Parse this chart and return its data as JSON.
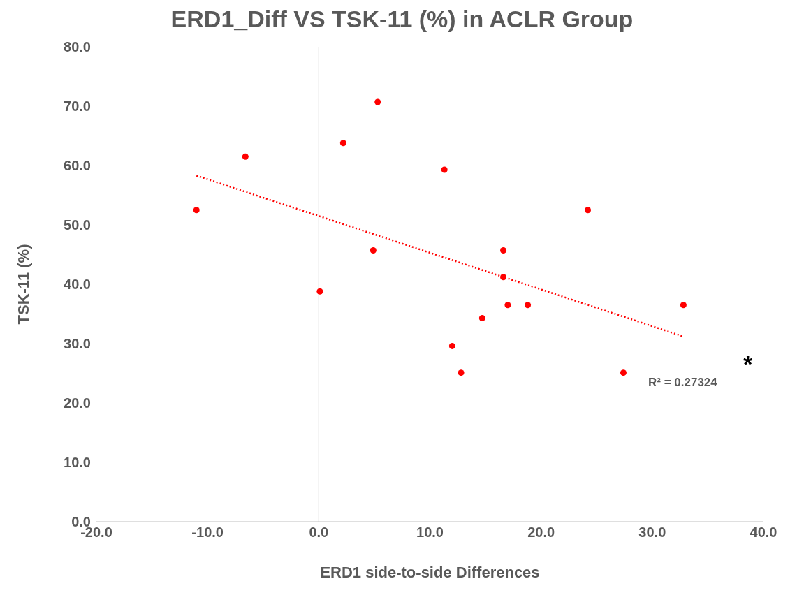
{
  "chart_data": {
    "type": "scatter",
    "title": "ERD1_Diff VS TSK-11 (%) in ACLR Group",
    "xlabel": "ERD1 side-to-side Differences",
    "ylabel": "TSK-11 (%)",
    "x": [
      -11.0,
      -6.6,
      0.1,
      2.2,
      4.9,
      5.3,
      11.3,
      12.0,
      12.8,
      14.7,
      16.6,
      16.6,
      17.0,
      18.8,
      24.2,
      27.4,
      32.8
    ],
    "series": [
      {
        "color": "#ff0000",
        "marker": "circle",
        "values": [
          52.5,
          61.5,
          38.8,
          63.8,
          45.7,
          70.7,
          59.3,
          29.6,
          25.1,
          34.3,
          45.7,
          41.2,
          36.5,
          36.5,
          52.5,
          25.1,
          36.5
        ]
      },
      {
        "type": "line",
        "color": "#ff0000",
        "marker": "none",
        "line_style": "dotted",
        "x": [
          -11.0,
          32.8
        ],
        "values": [
          58.3,
          31.2
        ]
      }
    ],
    "xlim": [
      -20,
      40
    ],
    "xticks": [
      {
        "value": -20,
        "label": "-20.0"
      },
      {
        "value": 0,
        "label": "0.0"
      },
      {
        "value": 10,
        "label": "10.0"
      },
      {
        "value": 20,
        "label": "20.0"
      },
      {
        "value": 30,
        "label": "30.0"
      },
      {
        "value": 40,
        "label": "40.0"
      },
      {
        "value": -10,
        "label": "-10.0"
      }
    ],
    "ylim": [
      0,
      80
    ],
    "yticks": [
      {
        "value": 0,
        "label": "0.0"
      },
      {
        "value": 10,
        "label": "10.0"
      },
      {
        "value": 20,
        "label": "20.0"
      },
      {
        "value": 30,
        "label": "30.0"
      },
      {
        "value": 40,
        "label": "40.0"
      },
      {
        "value": 50,
        "label": "50.0"
      },
      {
        "value": 60,
        "label": "60.0"
      },
      {
        "value": 70,
        "label": "70.0"
      },
      {
        "value": 80,
        "label": "80.0"
      }
    ],
    "ref_lines": [
      {
        "axis": "x",
        "value": 0,
        "color": "#bfbfbf",
        "line_style": "solid"
      }
    ],
    "annotations": [
      "R² = 0.27324",
      "*"
    ],
    "grid": false,
    "legend": false
  }
}
